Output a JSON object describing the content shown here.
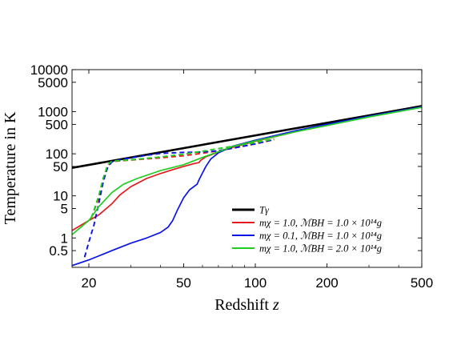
{
  "chart_data": {
    "type": "line",
    "xlabel": "Redshift z",
    "ylabel": "Temperature in K",
    "xscale": "log",
    "yscale": "log",
    "xlim": [
      17,
      500
    ],
    "ylim": [
      0.2,
      10000
    ],
    "xticks": [
      20,
      50,
      100,
      200,
      500
    ],
    "xtick_labels": [
      "20",
      "50",
      "100",
      "200",
      "500"
    ],
    "yticks": [
      0.5,
      1,
      5,
      10,
      50,
      100,
      500,
      1000,
      5000,
      10000
    ],
    "ytick_labels": [
      "0.5",
      "1",
      "5",
      "10",
      "50",
      "100",
      "500",
      "1000",
      "5000",
      "10000"
    ],
    "grid": false,
    "legend_position": "bottom-right",
    "series": [
      {
        "name": "T_γ",
        "legend": "Tγ",
        "color": "#000000",
        "style": "solid",
        "width": 2.6,
        "points": [
          [
            17,
            46.3
          ],
          [
            500,
            1365
          ]
        ]
      },
      {
        "name": "mχ = 1.0, M_BH = 1.0 × 10^14 g",
        "legend": "mχ = 1.0, ℳBH = 1.0 × 10¹⁴g",
        "color": "#e31a1c",
        "style": "solid",
        "width": 1.7,
        "points": [
          [
            17,
            1.5
          ],
          [
            20,
            2.6
          ],
          [
            22,
            3.5
          ],
          [
            25,
            6.5
          ],
          [
            27,
            10.5
          ],
          [
            30,
            16.5
          ],
          [
            35,
            26
          ],
          [
            40,
            34
          ],
          [
            45,
            42
          ],
          [
            50,
            50
          ],
          [
            55,
            58
          ],
          [
            58,
            62
          ],
          [
            59,
            70
          ],
          [
            62,
            85
          ],
          [
            70,
            110
          ],
          [
            80,
            142
          ],
          [
            100,
            198
          ],
          [
            150,
            342
          ],
          [
            200,
            480
          ],
          [
            300,
            770
          ],
          [
            500,
            1300
          ]
        ]
      },
      {
        "name": "mχ = 1.0, M_BH = 1.0 × 10^14 g (dashed)",
        "color": "#e31a1c",
        "style": "dashed",
        "width": 1.9,
        "points": [
          [
            20.5,
            3.0
          ],
          [
            22,
            9
          ],
          [
            23,
            25
          ],
          [
            24,
            52
          ],
          [
            25,
            65
          ],
          [
            27,
            68
          ],
          [
            30,
            71
          ],
          [
            40,
            80
          ],
          [
            50,
            90
          ],
          [
            60,
            103
          ],
          [
            70,
            118
          ],
          [
            80,
            135
          ],
          [
            100,
            172
          ],
          [
            120,
            218
          ]
        ]
      },
      {
        "name": "mχ = 0.1, M_BH = 1.0 × 10^14 g",
        "legend": "mχ = 0.1, ℳBH = 1.0 × 10¹⁴g",
        "color": "#0a14e6",
        "style": "solid",
        "width": 1.7,
        "points": [
          [
            17,
            0.22
          ],
          [
            20,
            0.3
          ],
          [
            25,
            0.5
          ],
          [
            30,
            0.75
          ],
          [
            35,
            1.0
          ],
          [
            40,
            1.35
          ],
          [
            43,
            1.8
          ],
          [
            45,
            2.6
          ],
          [
            47,
            4.5
          ],
          [
            50,
            9
          ],
          [
            53,
            14
          ],
          [
            57,
            19
          ],
          [
            58,
            24
          ],
          [
            60,
            35
          ],
          [
            62,
            50
          ],
          [
            65,
            75
          ],
          [
            70,
            105
          ],
          [
            80,
            150
          ],
          [
            100,
            210
          ],
          [
            150,
            360
          ],
          [
            200,
            500
          ],
          [
            300,
            780
          ],
          [
            500,
            1310
          ]
        ]
      },
      {
        "name": "mχ = 0.1, M_BH = 1.0 × 10^14 g (dashed)",
        "color": "#0a14e6",
        "style": "dashed",
        "width": 1.9,
        "points": [
          [
            19.2,
            0.35
          ],
          [
            20,
            0.8
          ],
          [
            21,
            2.0
          ],
          [
            22,
            6.5
          ],
          [
            23,
            22
          ],
          [
            24,
            48
          ],
          [
            25,
            64
          ],
          [
            27,
            72
          ],
          [
            30,
            80
          ],
          [
            35,
            92
          ],
          [
            40,
            102
          ],
          [
            50,
            108
          ],
          [
            60,
            110
          ],
          [
            70,
            118
          ],
          [
            80,
            135
          ],
          [
            100,
            172
          ],
          [
            120,
            218
          ]
        ]
      },
      {
        "name": "mχ = 1.0, M_BH = 2.0 × 10^14 g",
        "legend": "mχ = 1.0, ℳBH = 2.0 × 10¹⁴g",
        "color": "#22cc22",
        "style": "solid",
        "width": 1.7,
        "points": [
          [
            17,
            1.2
          ],
          [
            20,
            2.6
          ],
          [
            22,
            5.5
          ],
          [
            25,
            12
          ],
          [
            28,
            19
          ],
          [
            32,
            26
          ],
          [
            40,
            40
          ],
          [
            50,
            55
          ],
          [
            60,
            82
          ],
          [
            70,
            112
          ],
          [
            80,
            148
          ],
          [
            100,
            202
          ],
          [
            150,
            340
          ],
          [
            200,
            470
          ],
          [
            300,
            750
          ],
          [
            500,
            1270
          ]
        ]
      },
      {
        "name": "mχ = 1.0, M_BH = 2.0 × 10^14 g (dashed)",
        "color": "#22cc22",
        "style": "dashed",
        "width": 1.9,
        "points": [
          [
            20.5,
            3.0
          ],
          [
            22,
            10
          ],
          [
            23,
            27
          ],
          [
            24,
            55
          ],
          [
            25,
            67
          ],
          [
            27,
            69
          ],
          [
            30,
            72
          ],
          [
            40,
            84
          ],
          [
            50,
            98
          ],
          [
            60,
            115
          ],
          [
            70,
            133
          ],
          [
            80,
            150
          ],
          [
            100,
            185
          ],
          [
            120,
            225
          ]
        ]
      }
    ]
  }
}
